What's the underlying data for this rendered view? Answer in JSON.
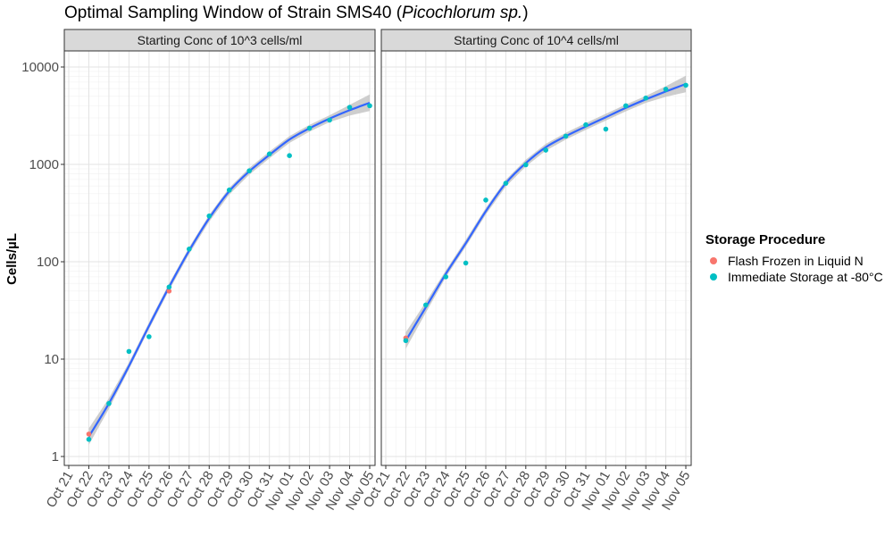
{
  "title": {
    "prefix": "Optimal Sampling Window of Strain SMS40 (",
    "species": "Picochlorum sp.",
    "suffix": ")"
  },
  "legend": {
    "title": "Storage Procedure",
    "items": [
      {
        "label": "Flash Frozen in Liquid N",
        "color": "#F8766D"
      },
      {
        "label": "Immediate Storage at -80°C",
        "color": "#00BFC4"
      }
    ]
  },
  "chart_data": {
    "type": "scatter",
    "ylabel": "Cells/µL",
    "xlabel": "",
    "y_scale": "log10",
    "ylim": [
      1,
      10000
    ],
    "y_ticks": [
      1,
      10,
      100,
      1000,
      10000
    ],
    "y_tick_labels": [
      "1",
      "10",
      "100",
      "1000",
      "10000"
    ],
    "x_ticks": [
      "Oct 21",
      "Oct 22",
      "Oct 23",
      "Oct 24",
      "Oct 25",
      "Oct 26",
      "Oct 27",
      "Oct 28",
      "Oct 29",
      "Oct 30",
      "Oct 31",
      "Nov 01",
      "Nov 02",
      "Nov 03",
      "Nov 04",
      "Nov 05"
    ],
    "smooth_color": "#3366FF",
    "ribbon_color": "#bdbdbd",
    "grid": true,
    "legend_position": "right",
    "panels": [
      {
        "strip": "Starting Conc of 10^3 cells/ml",
        "series": [
          {
            "name": "Flash Frozen in Liquid N",
            "color": "#F8766D",
            "points": [
              [
                "Oct 22",
                1.7
              ],
              [
                "Oct 26",
                50
              ]
            ]
          },
          {
            "name": "Immediate Storage at -80°C",
            "color": "#00BFC4",
            "points": [
              [
                "Oct 22",
                1.5
              ],
              [
                "Oct 23",
                3.5
              ],
              [
                "Oct 24",
                12
              ],
              [
                "Oct 25",
                17
              ],
              [
                "Oct 26",
                55
              ],
              [
                "Oct 27",
                135
              ],
              [
                "Oct 28",
                295
              ],
              [
                "Oct 29",
                545
              ],
              [
                "Oct 30",
                860
              ],
              [
                "Oct 31",
                1280
              ],
              [
                "Nov 01",
                1230
              ],
              [
                "Nov 02",
                2350
              ],
              [
                "Nov 03",
                2850
              ],
              [
                "Nov 04",
                3850
              ],
              [
                "Nov 05",
                4000
              ]
            ]
          }
        ],
        "smooth": [
          [
            "Oct 22",
            1.6
          ],
          [
            "Oct 23",
            3.5
          ],
          [
            "Oct 24",
            8.5
          ],
          [
            "Oct 25",
            22
          ],
          [
            "Oct 26",
            55
          ],
          [
            "Oct 27",
            130
          ],
          [
            "Oct 28",
            280
          ],
          [
            "Oct 29",
            530
          ],
          [
            "Oct 30",
            850
          ],
          [
            "Oct 31",
            1250
          ],
          [
            "Nov 01",
            1800
          ],
          [
            "Nov 02",
            2350
          ],
          [
            "Nov 03",
            2950
          ],
          [
            "Nov 04",
            3600
          ],
          [
            "Nov 05",
            4300
          ]
        ]
      },
      {
        "strip": "Starting Conc of 10^4 cells/ml",
        "series": [
          {
            "name": "Flash Frozen in Liquid N",
            "color": "#F8766D",
            "points": [
              [
                "Oct 22",
                16.5
              ]
            ]
          },
          {
            "name": "Immediate Storage at -80°C",
            "color": "#00BFC4",
            "points": [
              [
                "Oct 22",
                15.5
              ],
              [
                "Oct 23",
                36
              ],
              [
                "Oct 24",
                70
              ],
              [
                "Oct 25",
                97
              ],
              [
                "Oct 26",
                430
              ],
              [
                "Oct 27",
                640
              ],
              [
                "Oct 28",
                990
              ],
              [
                "Oct 29",
                1400
              ],
              [
                "Oct 30",
                1950
              ],
              [
                "Oct 31",
                2550
              ],
              [
                "Nov 01",
                2300
              ],
              [
                "Nov 02",
                4000
              ],
              [
                "Nov 03",
                4800
              ],
              [
                "Nov 04",
                5900
              ],
              [
                "Nov 05",
                6500
              ]
            ]
          }
        ],
        "smooth": [
          [
            "Oct 22",
            15.5
          ],
          [
            "Oct 23",
            34
          ],
          [
            "Oct 24",
            75
          ],
          [
            "Oct 25",
            155
          ],
          [
            "Oct 26",
            330
          ],
          [
            "Oct 27",
            640
          ],
          [
            "Oct 28",
            1030
          ],
          [
            "Oct 29",
            1500
          ],
          [
            "Oct 30",
            1950
          ],
          [
            "Oct 31",
            2450
          ],
          [
            "Nov 01",
            3050
          ],
          [
            "Nov 02",
            3800
          ],
          [
            "Nov 03",
            4650
          ],
          [
            "Nov 04",
            5600
          ],
          [
            "Nov 05",
            6700
          ]
        ]
      }
    ]
  }
}
